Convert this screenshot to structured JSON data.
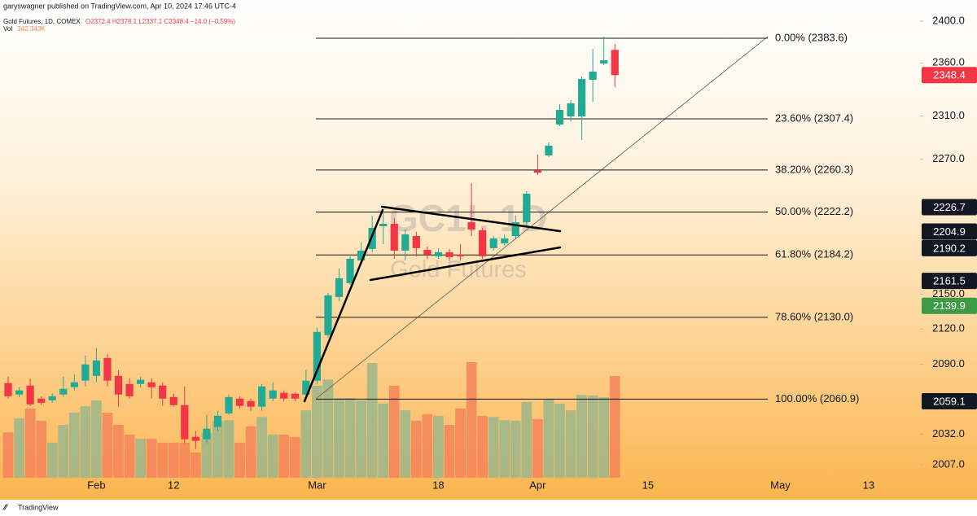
{
  "header": {
    "publisher": "garyswagner published on TradingView.com, Apr 10, 2024 17:46 UTC-4",
    "footer": "TradingView"
  },
  "chart_data": {
    "type": "candlestick",
    "title": "Gold Futures, 1D, COMEX",
    "ohlc_text": "O2372.4 H2378.1 L2337.1 C2348.4 −14.0 (−0.59%)",
    "volume_name": "Vol",
    "volume_text": "342.343K",
    "watermark": [
      "GC1!, 1D",
      "Gold Futures"
    ],
    "log_scale": true,
    "grid": false,
    "up_color": "#22ab94",
    "down_color": "#f23645",
    "volume_up_color": "#9bb68c",
    "volume_down_color": "#f4845a",
    "x": [
      0,
      1,
      2,
      3,
      4,
      5,
      6,
      7,
      8,
      9,
      10,
      11,
      12,
      13,
      14,
      15,
      16,
      17,
      18,
      19,
      20,
      21,
      22,
      23,
      24,
      25,
      26,
      27,
      28,
      29,
      30,
      31,
      32,
      33,
      34,
      35,
      36,
      37,
      38,
      39,
      40,
      41,
      42,
      43,
      44,
      45,
      46,
      47,
      48,
      49,
      50,
      51,
      52,
      53,
      54,
      55
    ],
    "open": [
      2074.2,
      2064.7,
      2072.2,
      2061.3,
      2059.9,
      2064.7,
      2070.8,
      2076.3,
      2080.3,
      2095.4,
      2080.3,
      2073.5,
      2073.5,
      2074.9,
      2072.2,
      2062.6,
      2055.9,
      2029.8,
      2027.8,
      2037.8,
      2049.1,
      2061.3,
      2059.3,
      2054.6,
      2061.3,
      2066.1,
      2065.4,
      2064.7,
      2076.3,
      2114.7,
      2147.5,
      2159.5,
      2179.4,
      2189.5,
      2209.6,
      2211.8,
      2188.0,
      2200.9,
      2188.7,
      2183.0,
      2186.6,
      2184.4,
      2213.2,
      2206.1,
      2190.2,
      2194.4,
      2200.9,
      2213.2,
      2260.1,
      2273.6,
      2302.1,
      2309.6,
      2309.6,
      2344.0,
      2359.4,
      2372.4
    ],
    "high": [
      2079.7,
      2070.8,
      2078.3,
      2063.3,
      2066.1,
      2079.7,
      2081.7,
      2097.5,
      2103.7,
      2098.8,
      2085.1,
      2078.3,
      2079.7,
      2078.3,
      2074.9,
      2065.4,
      2071.5,
      2034.5,
      2047.8,
      2051.2,
      2064.7,
      2063.3,
      2061.3,
      2073.5,
      2074.9,
      2068.1,
      2066.7,
      2085.1,
      2121.0,
      2151.0,
      2172.3,
      2183.0,
      2195.1,
      2219.1,
      2221.3,
      2216.9,
      2206.8,
      2204.6,
      2191.6,
      2190.2,
      2189.5,
      2193.7,
      2248.4,
      2208.2,
      2200.9,
      2202.4,
      2219.1,
      2241.0,
      2274.3,
      2285.5,
      2321.0,
      2324.9,
      2347.0,
      2373.4,
      2385.1,
      2378.1
    ],
    "low": [
      2061.3,
      2062.6,
      2055.3,
      2055.9,
      2057.9,
      2062.6,
      2068.1,
      2071.5,
      2074.9,
      2071.5,
      2054.6,
      2061.3,
      2070.8,
      2061.3,
      2055.3,
      2054.6,
      2024.5,
      2019.9,
      2024.5,
      2034.5,
      2047.8,
      2053.2,
      2051.2,
      2051.2,
      2059.3,
      2059.3,
      2059.3,
      2061.3,
      2073.5,
      2112.7,
      2144.0,
      2158.1,
      2178.0,
      2186.6,
      2193.7,
      2180.8,
      2179.4,
      2183.0,
      2180.8,
      2180.8,
      2179.4,
      2179.4,
      2200.9,
      2180.8,
      2188.0,
      2192.3,
      2198.8,
      2209.6,
      2255.7,
      2272.1,
      2300.6,
      2304.3,
      2287.8,
      2323.3,
      2357.9,
      2337.1
    ],
    "close": [
      2063.3,
      2068.1,
      2056.6,
      2057.9,
      2063.3,
      2069.5,
      2074.9,
      2089.9,
      2093.3,
      2076.3,
      2064.7,
      2063.3,
      2077.0,
      2070.8,
      2061.3,
      2055.9,
      2027.8,
      2026.5,
      2036.5,
      2047.1,
      2062.6,
      2055.3,
      2054.6,
      2071.5,
      2068.1,
      2061.3,
      2061.3,
      2076.3,
      2117.5,
      2148.9,
      2163.8,
      2180.8,
      2188.0,
      2208.2,
      2211.8,
      2188.0,
      2202.4,
      2190.2,
      2184.4,
      2186.6,
      2182.3,
      2183.0,
      2206.8,
      2183.0,
      2198.8,
      2198.8,
      2213.2,
      2238.8,
      2257.9,
      2282.6,
      2315.7,
      2321.8,
      2344.7,
      2351.7,
      2362.5,
      2348.4
    ],
    "volume": [
      153,
      200,
      233,
      192,
      118,
      178,
      219,
      241,
      260,
      219,
      178,
      145,
      131,
      131,
      118,
      118,
      118,
      85,
      151,
      192,
      194,
      118,
      173,
      205,
      145,
      145,
      137,
      227,
      310,
      331,
      268,
      268,
      260,
      386,
      249,
      310,
      227,
      192,
      214,
      208,
      178,
      233,
      389,
      208,
      205,
      194,
      192,
      255,
      197,
      263,
      249,
      227,
      279,
      277,
      271,
      342.343
    ],
    "xlim": [
      -0.74,
      82.66
    ],
    "xticks": [
      {
        "value": 8,
        "label": "Feb"
      },
      {
        "value": 15,
        "label": "12"
      },
      {
        "value": 28,
        "label": "Mar"
      },
      {
        "value": 39,
        "label": "18"
      },
      {
        "value": 48,
        "label": "Apr"
      },
      {
        "value": 58,
        "label": "15"
      },
      {
        "value": 70,
        "label": "May"
      },
      {
        "value": 78,
        "label": "13"
      }
    ],
    "ylim": [
      1996.6,
      2409.5
    ],
    "yticks": [
      {
        "value": 2400,
        "label": "2400.0"
      },
      {
        "value": 2360,
        "label": "2360.0"
      },
      {
        "value": 2310,
        "label": "2310.0"
      },
      {
        "value": 2270,
        "label": "2270.0"
      },
      {
        "value": 2150,
        "label": "2150.0"
      },
      {
        "value": 2120,
        "label": "2120.0"
      },
      {
        "value": 2090,
        "label": "2090.0"
      },
      {
        "value": 2032,
        "label": "2032.0"
      },
      {
        "value": 2007,
        "label": "2007.0"
      }
    ],
    "volume_lim": [
      0,
      1570
    ],
    "fib_levels": [
      {
        "value": 2383.6,
        "label": "0.00% (2383.6)"
      },
      {
        "value": 2307.4,
        "label": "23.60% (2307.4)"
      },
      {
        "value": 2260.3,
        "label": "38.20% (2260.3)"
      },
      {
        "value": 2222.2,
        "label": "50.00% (2222.2)"
      },
      {
        "value": 2184.2,
        "label": "61.80% (2184.2)"
      },
      {
        "value": 2130.0,
        "label": "78.60% (2130.0)"
      },
      {
        "value": 2060.9,
        "label": "100.00% (2060.9)"
      }
    ],
    "price_markers": [
      {
        "value": 2348.4,
        "color": "#f23645"
      },
      {
        "value": 2226.7,
        "color": "#131722"
      },
      {
        "value": 2204.9,
        "color": "#131722"
      },
      {
        "value": 2190.2,
        "color": "#131722"
      },
      {
        "value": 2161.5,
        "color": "#131722"
      },
      {
        "value": 2139.9,
        "color": "#3d9a47"
      },
      {
        "value": 2059.1,
        "color": "#131722"
      }
    ]
  }
}
